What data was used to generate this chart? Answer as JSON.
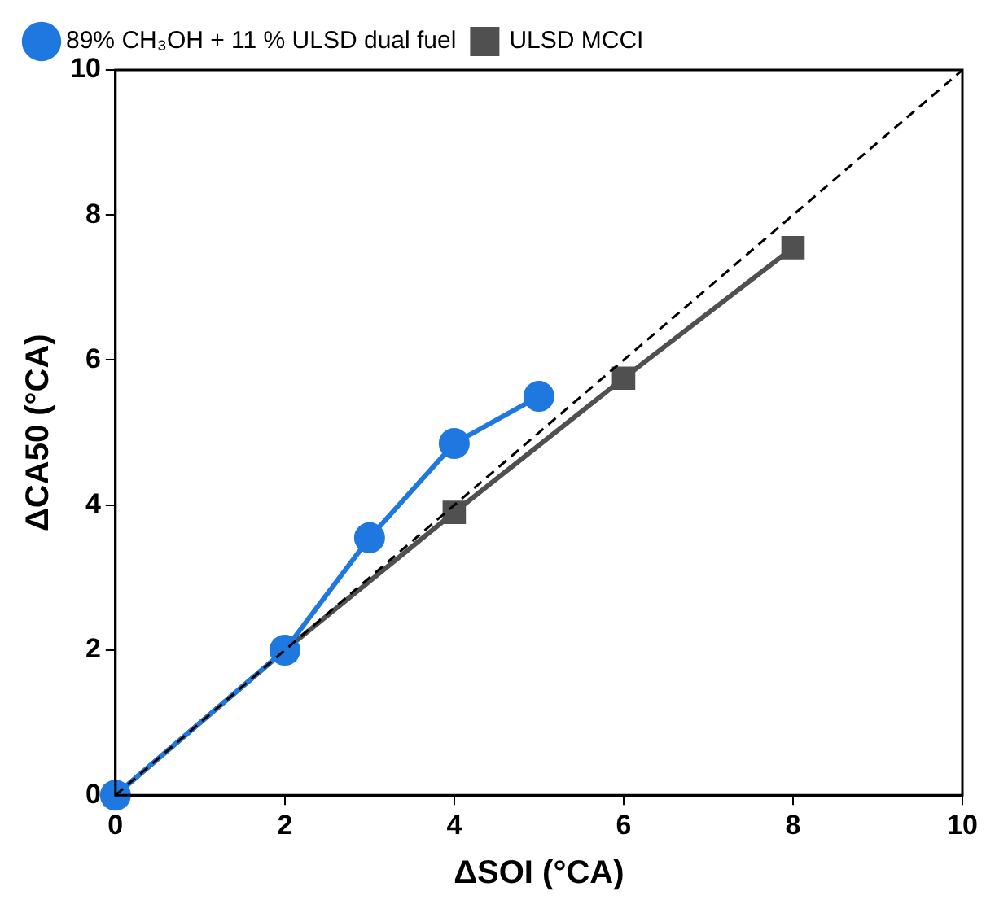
{
  "chart_data": {
    "type": "line",
    "xlabel": "ΔSOI (°CA)",
    "ylabel": "ΔCA50 (°CA)",
    "xlim": [
      0,
      10
    ],
    "xticks": [
      0,
      2,
      4,
      6,
      8,
      10
    ],
    "ylim": [
      0,
      10
    ],
    "yticks": [
      0,
      2,
      4,
      6,
      8,
      10
    ],
    "grid": false,
    "legend": "top",
    "series": [
      {
        "name": "ULSD MCCI",
        "color": "#505050",
        "marker": "square",
        "x": [
          0,
          2,
          4,
          6,
          8
        ],
        "values": [
          0,
          2,
          3.9,
          5.75,
          7.55
        ]
      },
      {
        "name": "89% CH₃OH + 11 % ULSD dual fuel",
        "color": "#1f78e0",
        "marker": "circle",
        "x": [
          0,
          2,
          3,
          4,
          5
        ],
        "values": [
          0,
          2,
          3.55,
          4.85,
          5.5
        ]
      },
      {
        "color": "#000000",
        "marker": "none",
        "line_style": "dashed",
        "x": [
          0,
          10
        ],
        "values": [
          0,
          10
        ]
      }
    ]
  }
}
